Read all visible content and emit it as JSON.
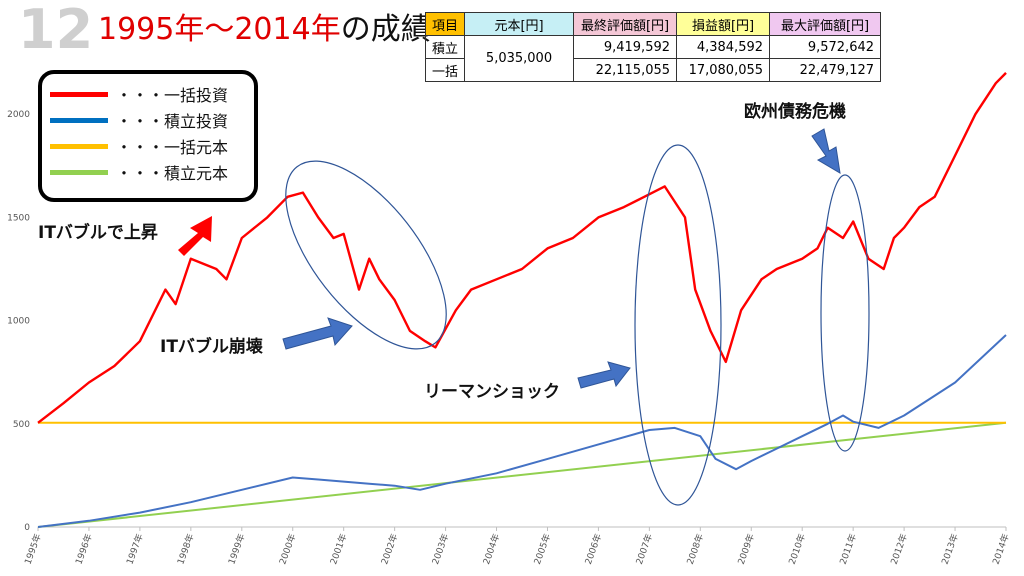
{
  "slide": {
    "number": "12",
    "title_red": "1995年～2014年",
    "title_rest": "の成績"
  },
  "table": {
    "headers": [
      "項目",
      "元本[円]",
      "最終評価額[円]",
      "損益額[円]",
      "最大評価額[円]"
    ],
    "header_colors": [
      "#ffc000",
      "#c6eff5",
      "#f4c7d6",
      "#ffff99",
      "#f0c8f0"
    ],
    "principal": "5,035,000",
    "rows": [
      {
        "label": "積立",
        "final": "9,419,592",
        "profit": "4,384,592",
        "max": "9,572,642"
      },
      {
        "label": "一括",
        "final": "22,115,055",
        "profit": "17,080,055",
        "max": "22,479,127"
      }
    ]
  },
  "legend": [
    {
      "label": "・・・一括投資",
      "color": "#ff0000"
    },
    {
      "label": "・・・積立投資",
      "color": "#0070c0"
    },
    {
      "label": "・・・一括元本",
      "color": "#ffc000"
    },
    {
      "label": "・・・積立元本",
      "color": "#92d050"
    }
  ],
  "annotations": {
    "it_bubble_rise": "ITバブルで上昇",
    "it_bubble_crash": "ITバブル崩壊",
    "lehman": "リーマンショック",
    "euro_crisis": "欧州債務危機"
  },
  "chart_data": {
    "type": "line",
    "title": "",
    "xlabel": "",
    "ylabel": "",
    "ylim": [
      0,
      2500
    ],
    "yticks": [
      0,
      500,
      1000,
      1500,
      2000
    ],
    "categories": [
      "1995年",
      "1996年",
      "1997年",
      "1998年",
      "1999年",
      "2000年",
      "2001年",
      "2002年",
      "2003年",
      "2004年",
      "2005年",
      "2006年",
      "2007年",
      "2008年",
      "2009年",
      "2010年",
      "2011年",
      "2012年",
      "2013年",
      "2014年"
    ],
    "grid": false,
    "series": [
      {
        "name": "一括投資",
        "color": "#ff0000",
        "x": [
          1995.0,
          1995.5,
          1996.0,
          1996.5,
          1997.0,
          1997.5,
          1997.7,
          1998.0,
          1998.5,
          1998.7,
          1999.0,
          1999.5,
          1999.9,
          2000.2,
          2000.5,
          2000.8,
          2001.0,
          2001.3,
          2001.5,
          2001.7,
          2002.0,
          2002.3,
          2002.6,
          2002.8,
          2003.2,
          2003.5,
          2004.0,
          2004.5,
          2005.0,
          2005.5,
          2006.0,
          2006.5,
          2006.9,
          2007.3,
          2007.7,
          2007.9,
          2008.2,
          2008.5,
          2008.8,
          2009.2,
          2009.5,
          2010.0,
          2010.3,
          2010.5,
          2010.8,
          2011.0,
          2011.3,
          2011.6,
          2011.8,
          2012.0,
          2012.3,
          2012.6,
          2013.0,
          2013.4,
          2013.8,
          2014.0
        ],
        "values": [
          505,
          600,
          700,
          780,
          900,
          1150,
          1080,
          1300,
          1250,
          1200,
          1400,
          1500,
          1600,
          1620,
          1500,
          1400,
          1420,
          1150,
          1300,
          1200,
          1100,
          950,
          900,
          870,
          1050,
          1150,
          1200,
          1250,
          1350,
          1400,
          1500,
          1550,
          1600,
          1650,
          1500,
          1150,
          950,
          800,
          1050,
          1200,
          1250,
          1300,
          1350,
          1450,
          1400,
          1480,
          1300,
          1250,
          1400,
          1450,
          1550,
          1600,
          1800,
          2000,
          2150,
          2200
        ]
      },
      {
        "name": "積立投資",
        "color": "#4472c4",
        "x": [
          1995.0,
          1996.0,
          1997.0,
          1998.0,
          1999.0,
          2000.0,
          2000.5,
          2001.0,
          2001.5,
          2002.0,
          2002.5,
          2003.0,
          2004.0,
          2005.0,
          2006.0,
          2007.0,
          2007.5,
          2008.0,
          2008.3,
          2008.7,
          2009.0,
          2009.5,
          2010.0,
          2010.5,
          2010.8,
          2011.0,
          2011.5,
          2012.0,
          2013.0,
          2014.0
        ],
        "values": [
          0,
          30,
          70,
          120,
          180,
          240,
          230,
          220,
          210,
          200,
          180,
          210,
          260,
          330,
          400,
          470,
          480,
          440,
          330,
          280,
          320,
          380,
          440,
          500,
          540,
          510,
          480,
          540,
          700,
          930
        ]
      },
      {
        "name": "一括元本",
        "color": "#ffc000",
        "x": [
          1995.0,
          2014.0
        ],
        "values": [
          505,
          505
        ]
      },
      {
        "name": "積立元本",
        "color": "#92d050",
        "x": [
          1995.0,
          2014.0
        ],
        "values": [
          0,
          505
        ]
      }
    ]
  }
}
